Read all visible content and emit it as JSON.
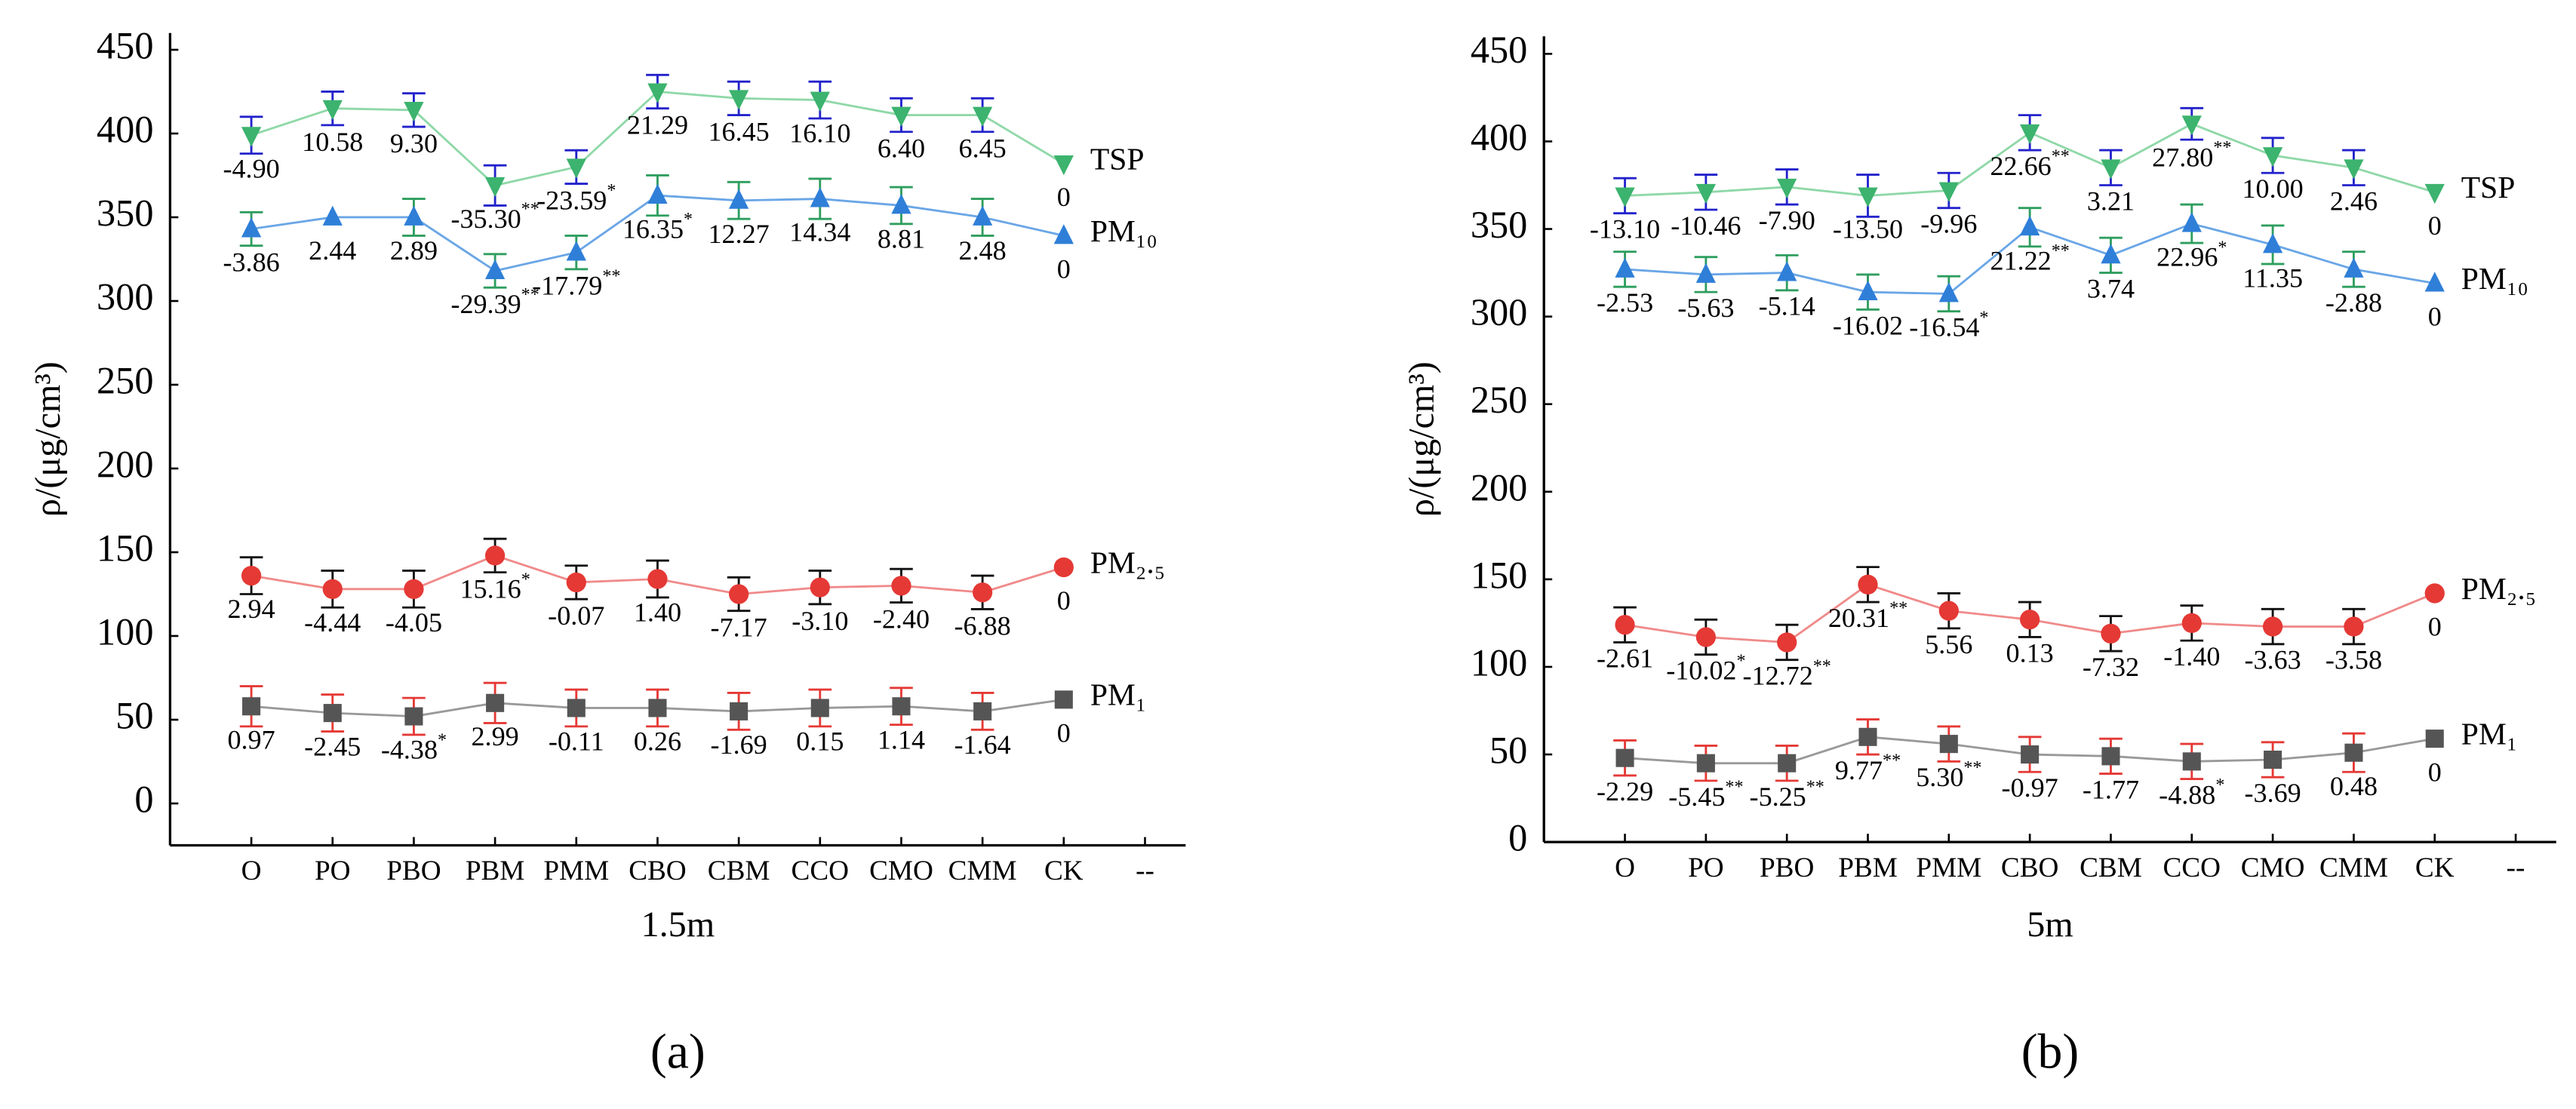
{
  "chart_data": [
    {
      "type": "line",
      "xlabel": "1.5m",
      "ylabel": "ρ/(μg/cm³)",
      "panel_label": "(a)",
      "categories": [
        "O",
        "PO",
        "PBO",
        "PBM",
        "PMM",
        "CBO",
        "CBM",
        "CCO",
        "CMO",
        "CMM",
        "CK",
        "--"
      ],
      "ylim": [
        -25,
        460
      ],
      "yticks": [
        0,
        50,
        100,
        150,
        200,
        250,
        300,
        350,
        400,
        450
      ],
      "series": [
        {
          "name": "TSP",
          "color": "#3cb36e",
          "line_color": "#8fd8a8",
          "marker": "triangle-down",
          "error_color": "#2222cc",
          "values": [
            399,
            415,
            414,
            369,
            380,
            425,
            421,
            420,
            411,
            411,
            382,
            null
          ],
          "errors": [
            11,
            10,
            10,
            12,
            10,
            10,
            10,
            11,
            10,
            10,
            0,
            null
          ],
          "labels": [
            "-4.90",
            "10.58",
            "9.30",
            "-35.30",
            "-23.59",
            "21.29",
            "16.45",
            "16.10",
            "6.40",
            "6.45",
            "0",
            null
          ],
          "sig": [
            null,
            null,
            null,
            "**",
            "*",
            null,
            null,
            null,
            null,
            null,
            null,
            null
          ]
        },
        {
          "name": "PM₁₀",
          "color": "#2f7fd8",
          "line_color": "#6aa6e6",
          "marker": "triangle-up",
          "error_color": "#2e9e5e",
          "values": [
            343,
            350,
            350,
            318,
            329,
            363,
            360,
            361,
            357,
            350,
            339,
            null
          ],
          "errors": [
            10,
            0,
            11,
            10,
            10,
            12,
            11,
            12,
            11,
            11,
            0,
            null
          ],
          "labels": [
            "-3.86",
            "2.44",
            "2.89",
            "-29.39",
            "-17.79",
            "16.35",
            "12.27",
            "14.34",
            "8.81",
            "2.48",
            "0",
            null
          ],
          "sig": [
            null,
            null,
            null,
            "**",
            "**",
            "*",
            null,
            null,
            null,
            null,
            null,
            null
          ]
        },
        {
          "name": "PM₂.₅",
          "color": "#e53935",
          "line_color": "#f08a8a",
          "marker": "circle",
          "error_color": "#111111",
          "values": [
            136,
            128,
            128,
            148,
            132,
            134,
            125,
            129,
            130,
            126,
            141,
            null
          ],
          "errors": [
            11,
            11,
            11,
            10,
            10,
            11,
            10,
            10,
            10,
            10,
            0,
            null
          ],
          "labels": [
            "2.94",
            "-4.44",
            "-4.05",
            "15.16",
            "-0.07",
            "1.40",
            "-7.17",
            "-3.10",
            "-2.40",
            "-6.88",
            "0",
            null
          ],
          "sig": [
            null,
            null,
            null,
            "*",
            null,
            null,
            null,
            null,
            null,
            null,
            null,
            null
          ]
        },
        {
          "name": "PM₁",
          "color": "#555555",
          "line_color": "#999999",
          "marker": "square",
          "error_color": "#e53935",
          "values": [
            58,
            54,
            52,
            60,
            57,
            57,
            55,
            57,
            58,
            55,
            62,
            null
          ],
          "errors": [
            12,
            11,
            11,
            12,
            11,
            11,
            11,
            11,
            11,
            11,
            0,
            null
          ],
          "labels": [
            "0.97",
            "-2.45",
            "-4.38",
            "2.99",
            "-0.11",
            "0.26",
            "-1.69",
            "0.15",
            "1.14",
            "-1.64",
            "0",
            null
          ],
          "sig": [
            null,
            null,
            "*",
            null,
            null,
            null,
            null,
            null,
            null,
            null,
            null,
            null
          ]
        }
      ]
    },
    {
      "type": "line",
      "xlabel": "5m",
      "ylabel": "ρ/(μg/cm³)",
      "panel_label": "(b)",
      "categories": [
        "O",
        "PO",
        "PBO",
        "PBM",
        "PMM",
        "CBO",
        "CBM",
        "CCO",
        "CMO",
        "CMM",
        "CK",
        "--"
      ],
      "ylim": [
        0,
        460
      ],
      "yticks": [
        0,
        50,
        100,
        150,
        200,
        250,
        300,
        350,
        400,
        450
      ],
      "series": [
        {
          "name": "TSP",
          "color": "#3cb36e",
          "line_color": "#8fd8a8",
          "marker": "triangle-down",
          "error_color": "#2222cc",
          "values": [
            369,
            371,
            374,
            369,
            372,
            405,
            385,
            410,
            392,
            385,
            371,
            null
          ],
          "errors": [
            10,
            10,
            10,
            12,
            10,
            10,
            10,
            9,
            10,
            10,
            0,
            null
          ],
          "labels": [
            "-13.10",
            "-10.46",
            "-7.90",
            "-13.50",
            "-9.96",
            "22.66",
            "3.21",
            "27.80",
            "10.00",
            "2.46",
            "0",
            null
          ],
          "sig": [
            null,
            null,
            null,
            null,
            null,
            "**",
            null,
            "**",
            null,
            null,
            null,
            null
          ]
        },
        {
          "name": "PM₁₀",
          "color": "#2f7fd8",
          "line_color": "#6aa6e6",
          "marker": "triangle-up",
          "error_color": "#2e9e5e",
          "values": [
            327,
            324,
            325,
            314,
            313,
            351,
            335,
            353,
            341,
            327,
            319,
            null
          ],
          "errors": [
            10,
            10,
            10,
            10,
            10,
            11,
            10,
            11,
            11,
            10,
            0,
            null
          ],
          "labels": [
            "-2.53",
            "-5.63",
            "-5.14",
            "-16.02",
            "-16.54",
            "21.22",
            "3.74",
            "22.96",
            "11.35",
            "-2.88",
            "0",
            null
          ],
          "sig": [
            null,
            null,
            null,
            null,
            "*",
            "**",
            null,
            "*",
            null,
            null,
            null,
            null
          ]
        },
        {
          "name": "PM₂.₅",
          "color": "#e53935",
          "line_color": "#f08a8a",
          "marker": "circle",
          "error_color": "#111111",
          "values": [
            124,
            117,
            114,
            147,
            132,
            127,
            119,
            125,
            123,
            123,
            142,
            null
          ],
          "errors": [
            10,
            10,
            10,
            10,
            10,
            10,
            10,
            10,
            10,
            10,
            0,
            null
          ],
          "labels": [
            "-2.61",
            "-10.02",
            "-12.72",
            "20.31",
            "5.56",
            "0.13",
            "-7.32",
            "-1.40",
            "-3.63",
            "-3.58",
            "0",
            null
          ],
          "sig": [
            null,
            "*",
            "**",
            "**",
            null,
            null,
            null,
            null,
            null,
            null,
            null,
            null
          ]
        },
        {
          "name": "PM₁",
          "color": "#555555",
          "line_color": "#999999",
          "marker": "square",
          "error_color": "#e53935",
          "values": [
            48,
            45,
            45,
            60,
            56,
            50,
            49,
            46,
            47,
            51,
            59,
            null
          ],
          "errors": [
            10,
            10,
            10,
            10,
            10,
            10,
            10,
            10,
            10,
            11,
            0,
            null
          ],
          "labels": [
            "-2.29",
            "-5.45",
            "-5.25",
            "9.77",
            "5.30",
            "-0.97",
            "-1.77",
            "-4.88",
            "-3.69",
            "0.48",
            "0",
            null
          ],
          "sig": [
            null,
            "**",
            "**",
            "**",
            "**",
            null,
            null,
            "*",
            null,
            null,
            null,
            null
          ]
        }
      ]
    }
  ]
}
